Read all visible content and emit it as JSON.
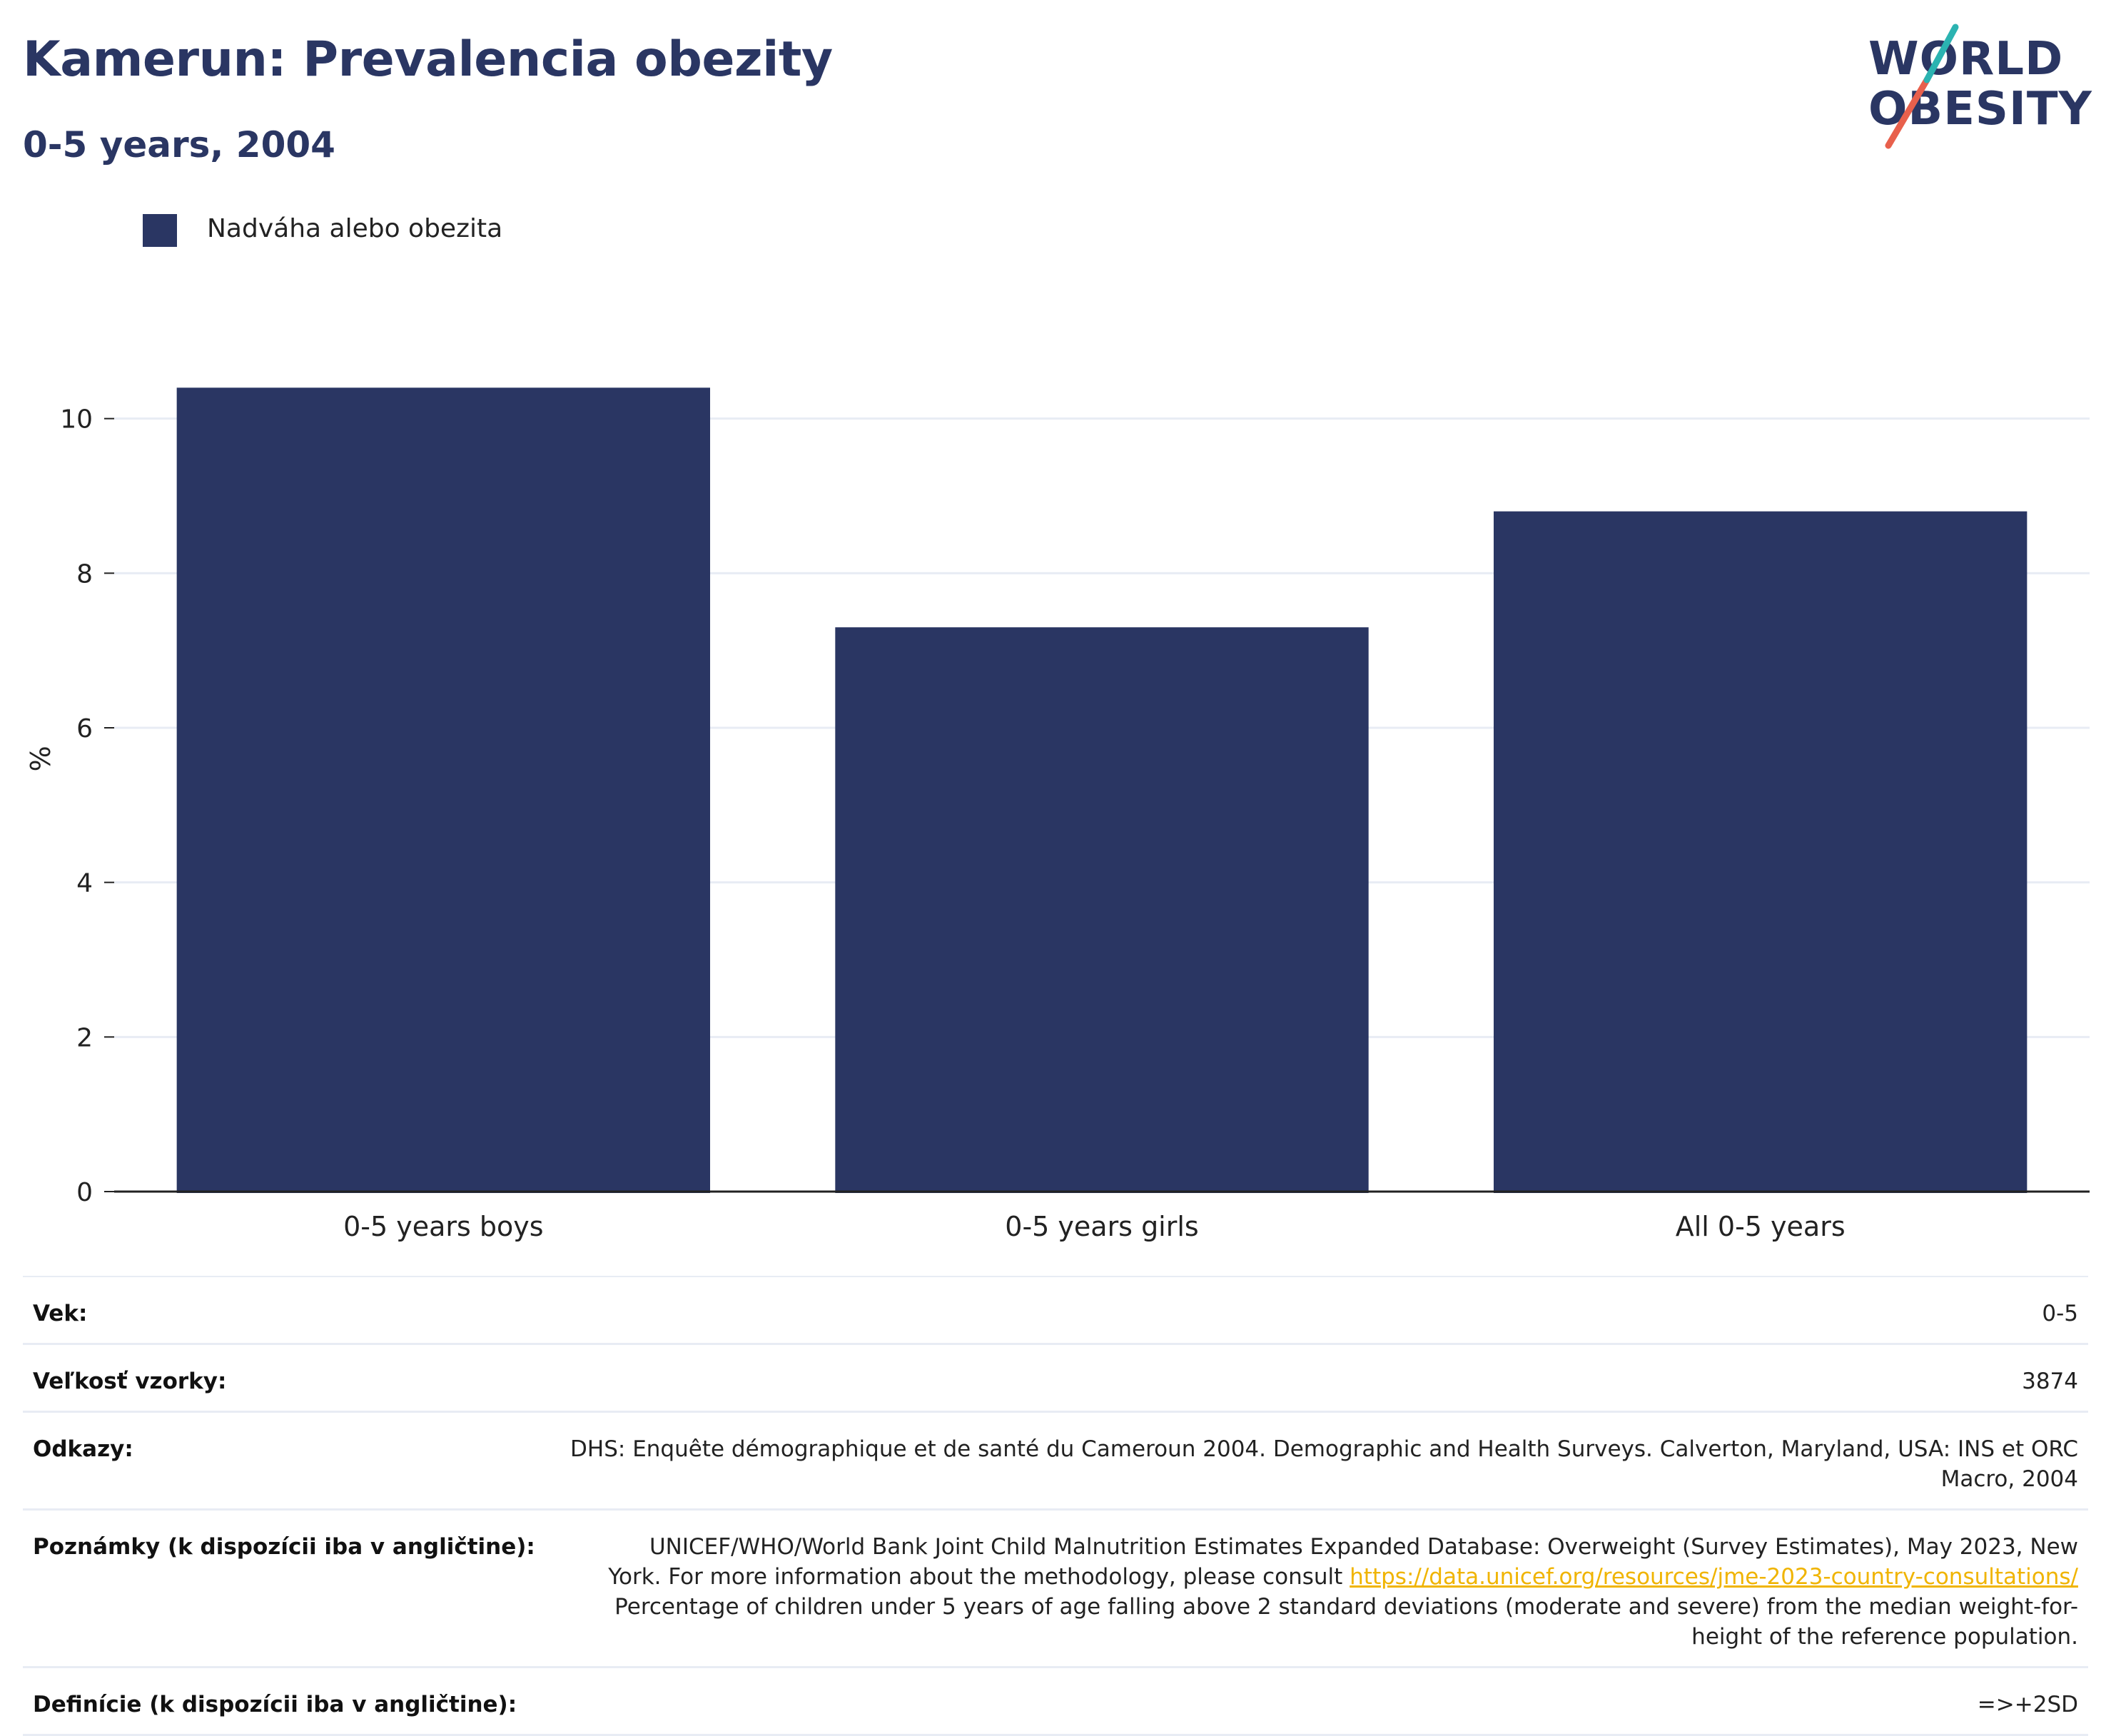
{
  "header": {
    "title": "Kamerun: Prevalencia obezity",
    "subtitle": "0-5 years, 2004"
  },
  "logo": {
    "line1": "WORLD",
    "line2": "OBESITY"
  },
  "colors": {
    "bar": "#2a3663",
    "grid": "#e8ecf4",
    "axis": "#222222",
    "accent_teal": "#2bb3b1",
    "accent_red": "#e8604c",
    "link": "#f0b400"
  },
  "chart_data": {
    "type": "bar",
    "categories": [
      "0-5 years boys",
      "0-5 years girls",
      "All 0-5 years"
    ],
    "series": [
      {
        "name": "Nadváha alebo obezita",
        "values": [
          10.4,
          7.3,
          8.8
        ]
      }
    ],
    "ylabel": "%",
    "xlabel": "",
    "ylim": [
      0,
      10.8
    ],
    "yticks": [
      0,
      2,
      4,
      6,
      8,
      10
    ],
    "grid": true,
    "legend_position": "top-left"
  },
  "info": {
    "rows": [
      {
        "key": "Vek:",
        "value": "0-5"
      },
      {
        "key": "Veľkosť vzorky:",
        "value": "3874"
      },
      {
        "key": "Odkazy:",
        "value": "DHS: Enquête démographique et de santé du Cameroun 2004. Demographic and Health Surveys. Calverton, Maryland, USA: INS et ORC Macro, 2004"
      },
      {
        "key": "Poznámky (k dispozícii iba v angličtine):",
        "value_pre": "UNICEF/WHO/World Bank Joint Child Malnutrition Estimates Expanded Database: Overweight (Survey Estimates), May 2023, New York. For more information about the methodology, please consult ",
        "link": "https://data.unicef.org/resources/jme-2023-country-consultations/",
        "value_post": " Percentage of children under 5 years of age falling above 2 standard deviations (moderate and severe) from the median weight-for-height of the reference population."
      },
      {
        "key": "Definície (k dispozícii iba v angličtine):",
        "value": "=>+2SD"
      }
    ]
  }
}
